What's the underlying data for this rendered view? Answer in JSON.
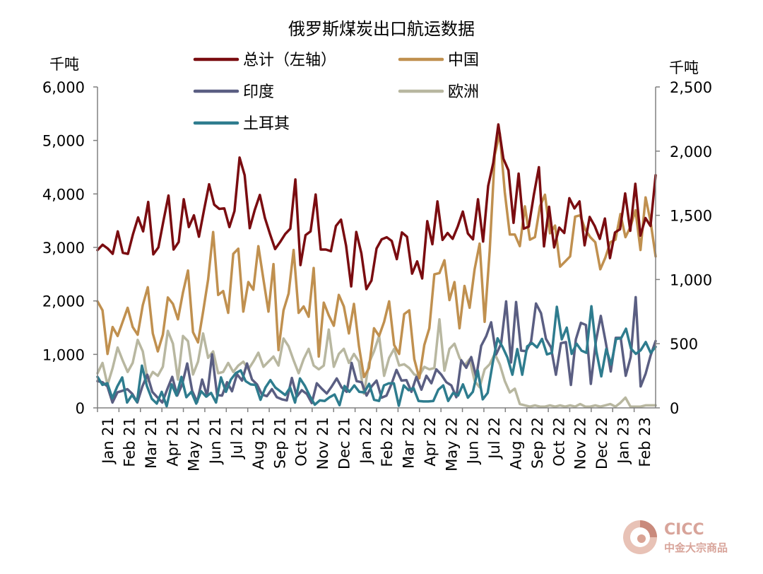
{
  "chart_data": {
    "type": "line",
    "title": "俄罗斯煤炭出口航运数据",
    "left_axis": {
      "unit": "千吨",
      "ylim": [
        0,
        6000
      ],
      "ticks": [
        0,
        1000,
        2000,
        3000,
        4000,
        5000,
        6000
      ],
      "tick_labels": [
        "0",
        "1,000",
        "2,000",
        "3,000",
        "4,000",
        "5,000",
        "6,000"
      ]
    },
    "right_axis": {
      "unit": "千吨",
      "ylim": [
        0,
        2500
      ],
      "ticks": [
        0,
        500,
        1000,
        1500,
        2000,
        2500
      ],
      "tick_labels": [
        "0",
        "500",
        "1,000",
        "1,500",
        "2,000",
        "2,500"
      ]
    },
    "x_tick_labels": [
      "Jan 21",
      "Feb 21",
      "Mar 21",
      "Apr 21",
      "May 21",
      "Jun 21",
      "Jul 21",
      "Aug 21",
      "Sep 21",
      "Oct 21",
      "Nov 21",
      "Dec 21",
      "Jan 22",
      "Feb 22",
      "Mar 22",
      "Apr 22",
      "May 22",
      "Jun 22",
      "Jul 22",
      "Aug 22",
      "Sep 22",
      "Oct 22",
      "Nov 22",
      "Dec 22",
      "Jan 23",
      "Feb 23"
    ],
    "legend": {
      "placement": "top",
      "columns": 2
    },
    "series": [
      {
        "name": "总计（左轴）",
        "axis": "left",
        "color": "#7a0c10",
        "values": [
          2950,
          3050,
          2980,
          2880,
          3300,
          2900,
          2880,
          3250,
          3560,
          3300,
          3850,
          2870,
          3000,
          3500,
          3970,
          2960,
          3100,
          3900,
          3380,
          3600,
          3200,
          3700,
          4180,
          3800,
          3720,
          3730,
          3380,
          3680,
          4680,
          4350,
          3360,
          3700,
          3980,
          3550,
          3250,
          2970,
          3100,
          3250,
          3350,
          4270,
          2670,
          3230,
          3300,
          3990,
          2960,
          2960,
          2930,
          3400,
          3520,
          3030,
          2270,
          3290,
          2890,
          2220,
          2380,
          2980,
          3150,
          3190,
          3120,
          2780,
          3280,
          3200,
          2510,
          2740,
          2420,
          3490,
          3060,
          3860,
          3140,
          3270,
          3160,
          3390,
          3670,
          3260,
          3150,
          3900,
          3110,
          4150,
          4580,
          5300,
          4660,
          4440,
          3460,
          4380,
          3350,
          3390,
          3980,
          4500,
          3020,
          3760,
          3000,
          3370,
          3270,
          3920,
          3730,
          3860,
          3040,
          3570,
          3400,
          3160,
          3540,
          2800,
          3280,
          3340,
          4010,
          3310,
          4190,
          3220,
          3550,
          3400,
          4350
        ]
      },
      {
        "name": "中国",
        "axis": "right",
        "color": "#c0904f",
        "values": [
          830,
          760,
          420,
          630,
          560,
          670,
          780,
          630,
          570,
          800,
          940,
          580,
          440,
          570,
          860,
          810,
          690,
          900,
          1070,
          590,
          510,
          750,
          1000,
          1370,
          880,
          910,
          740,
          1200,
          1240,
          750,
          980,
          920,
          1260,
          1000,
          750,
          1120,
          450,
          760,
          890,
          1230,
          740,
          790,
          710,
          1090,
          400,
          820,
          720,
          640,
          880,
          790,
          580,
          810,
          480,
          240,
          310,
          620,
          560,
          670,
          830,
          490,
          420,
          730,
          760,
          380,
          230,
          490,
          620,
          1040,
          1050,
          1150,
          840,
          980,
          620,
          950,
          780,
          1080,
          1280,
          670,
          1220,
          1970,
          2140,
          1680,
          1350,
          1350,
          1260,
          1570,
          1310,
          1330,
          1570,
          1660,
          1360,
          1420,
          1100,
          1140,
          1180,
          1490,
          1500,
          1390,
          1330,
          1290,
          1080,
          1170,
          1290,
          1310,
          1510,
          1330,
          1410,
          1540,
          1230,
          1640,
          1450,
          1180
        ]
      },
      {
        "name": "印度",
        "axis": "left",
        "color": "#5a5e82",
        "values": [
          500,
          480,
          400,
          100,
          290,
          320,
          350,
          260,
          100,
          400,
          620,
          300,
          200,
          100,
          350,
          580,
          230,
          440,
          830,
          320,
          110,
          530,
          220,
          1000,
          240,
          230,
          480,
          310,
          630,
          510,
          830,
          530,
          440,
          250,
          220,
          350,
          200,
          160,
          140,
          560,
          210,
          330,
          260,
          90,
          460,
          360,
          270,
          400,
          550,
          380,
          300,
          840,
          500,
          480,
          230,
          400,
          510,
          190,
          230,
          450,
          710,
          510,
          520,
          300,
          580,
          340,
          600,
          460,
          720,
          620,
          480,
          420,
          200,
          890,
          750,
          950,
          580,
          1160,
          1340,
          1600,
          1000,
          1200,
          1990,
          850,
          1980,
          1070,
          1060,
          1240,
          1950,
          1770,
          1290,
          1130,
          620,
          1210,
          1230,
          430,
          1280,
          1590,
          1550,
          450,
          1240,
          1720,
          1220,
          680,
          1310,
          1310,
          600,
          950,
          2070,
          400,
          640,
          980,
          1250
        ]
      },
      {
        "name": "欧洲",
        "axis": "right",
        "color": "#b8b7a0",
        "values": [
          270,
          350,
          180,
          310,
          470,
          370,
          280,
          350,
          530,
          440,
          210,
          280,
          250,
          320,
          600,
          500,
          220,
          560,
          520,
          260,
          360,
          580,
          390,
          440,
          270,
          280,
          350,
          280,
          330,
          360,
          300,
          360,
          430,
          320,
          360,
          400,
          330,
          540,
          480,
          370,
          270,
          380,
          460,
          330,
          300,
          330,
          610,
          320,
          420,
          460,
          350,
          420,
          360,
          110,
          350,
          440,
          560,
          250,
          390,
          460,
          330,
          340,
          310,
          260,
          250,
          320,
          300,
          310,
          690,
          290,
          460,
          500,
          390,
          330,
          380,
          210,
          160,
          300,
          340,
          420,
          340,
          210,
          120,
          150,
          30,
          20,
          10,
          20,
          10,
          10,
          20,
          10,
          20,
          10,
          20,
          10,
          30,
          10,
          10,
          20,
          10,
          20,
          30,
          10,
          40,
          80,
          10,
          10,
          10,
          20,
          20,
          20
        ]
      },
      {
        "name": "土耳其",
        "axis": "left",
        "color": "#2e7c8e",
        "values": [
          580,
          430,
          460,
          180,
          400,
          570,
          100,
          240,
          110,
          790,
          410,
          170,
          80,
          300,
          30,
          440,
          230,
          580,
          200,
          300,
          80,
          310,
          210,
          280,
          100,
          570,
          300,
          530,
          650,
          700,
          500,
          440,
          430,
          150,
          380,
          520,
          380,
          310,
          240,
          380,
          100,
          550,
          410,
          220,
          60,
          140,
          130,
          200,
          250,
          50,
          410,
          300,
          420,
          300,
          290,
          450,
          150,
          130,
          420,
          460,
          460,
          40,
          420,
          330,
          370,
          130,
          120,
          120,
          130,
          340,
          420,
          130,
          280,
          230,
          440,
          190,
          300,
          700,
          160,
          280,
          830,
          1300,
          1140,
          940,
          620,
          1100,
          620,
          1150,
          1210,
          1130,
          1290,
          1000,
          1030,
          1890,
          1280,
          1500,
          1010,
          1200,
          1070,
          1030,
          1900,
          1060,
          590,
          1100,
          810,
          1290,
          1300,
          1480,
          1110,
          1010,
          1080,
          1230,
          1030,
          1140
        ]
      }
    ]
  },
  "watermark": {
    "line1": "CICC",
    "line2": "中金大宗商品"
  }
}
